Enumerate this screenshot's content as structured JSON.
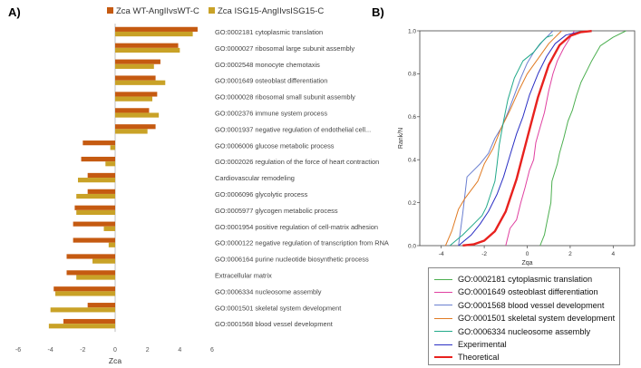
{
  "panel_a_label": "A)",
  "panel_b_label": "B)",
  "colors": {
    "series1": "#c55a11",
    "series2": "#c9a227",
    "zero_line": "#bfbfbf"
  },
  "chart_data": [
    {
      "type": "bar",
      "orientation": "horizontal",
      "xlabel": "Zca",
      "xlim": [
        -6,
        6
      ],
      "xticks": [
        -6,
        -4,
        -2,
        0,
        2,
        4,
        6
      ],
      "legend_position": "top",
      "categories": [
        "GO:0002181 cytoplasmic translation",
        "GO:0000027 ribosomal large subunit assembly",
        "GO:0002548 monocyte chemotaxis",
        "GO:0001649 osteoblast differentiation",
        "GO:0000028 ribosomal small subunit assembly",
        "GO:0002376 immune system process",
        "GO:0001937 negative regulation of endothelial cell...",
        "GO:0006006 glucose metabolic process",
        "GO:0002026 regulation of the force of heart contraction",
        "Cardiovascular remodeling",
        "GO:0006096 glycolytic process",
        "GO:0005977 glycogen metabolic process",
        "GO:0001954 positive regulation of cell-matrix adhesion",
        "GO:0000122 negative regulation of transcription from RNA",
        "GO:0006164 purine nucleotide biosynthetic process",
        "Extracellular matrix",
        "GO:0006334 nucleosome assembly",
        "GO:0001501 skeletal system development",
        "GO:0001568 blood vessel development"
      ],
      "series": [
        {
          "name": "Zca WT-AngIIvsWT-C",
          "color": "#c55a11",
          "values": [
            5.1,
            3.9,
            2.8,
            2.5,
            2.6,
            2.1,
            2.5,
            -2.0,
            -2.1,
            -1.7,
            -1.7,
            -2.5,
            -2.6,
            -2.6,
            -3.0,
            -3.0,
            -3.8,
            -1.7,
            -3.2
          ]
        },
        {
          "name": "Zca ISG15-AngIIvsISG15-C",
          "color": "#c9a227",
          "values": [
            4.8,
            4.0,
            2.4,
            3.1,
            2.3,
            2.7,
            2.0,
            -0.3,
            -0.6,
            -2.3,
            -2.4,
            -2.4,
            -0.7,
            -0.4,
            -1.4,
            -2.4,
            -3.7,
            -4.0,
            -4.1
          ]
        }
      ]
    },
    {
      "type": "line",
      "xlabel": "Zqa",
      "ylabel": "Rank/N",
      "xlim": [
        -5,
        5
      ],
      "ylim": [
        0,
        1
      ],
      "xticks": [
        -4,
        -2,
        0,
        2,
        4
      ],
      "yticks": [
        0.0,
        0.2,
        0.4,
        0.6,
        0.8,
        1.0
      ],
      "legend_position": "bottom",
      "series": [
        {
          "name": "GO:0002181 cytoplasmic translation",
          "color": "#4caf50",
          "x": [
            0.6,
            0.8,
            0.9,
            1.0,
            1.1,
            1.15,
            1.4,
            1.5,
            1.7,
            1.9,
            2.1,
            2.3,
            2.5,
            2.8,
            3.0,
            3.4,
            4.0,
            4.6
          ],
          "y": [
            0.0,
            0.05,
            0.1,
            0.15,
            0.2,
            0.3,
            0.38,
            0.43,
            0.5,
            0.58,
            0.63,
            0.7,
            0.76,
            0.82,
            0.86,
            0.93,
            0.97,
            1.0
          ]
        },
        {
          "name": "GO:0001649 osteoblast differentiation",
          "color": "#e040a0",
          "x": [
            -1.0,
            -0.8,
            -0.5,
            -0.3,
            -0.1,
            0.1,
            0.3,
            0.4,
            0.6,
            0.8,
            1.0,
            1.2,
            1.4,
            1.7,
            2.2
          ],
          "y": [
            0.0,
            0.08,
            0.12,
            0.2,
            0.27,
            0.35,
            0.4,
            0.48,
            0.55,
            0.62,
            0.72,
            0.8,
            0.86,
            0.92,
            1.0
          ]
        },
        {
          "name": "GO:0001568 blood vessel development",
          "color": "#6a7fd0",
          "x": [
            -3.2,
            -3.0,
            -2.8,
            -2.2,
            -1.8,
            -1.5,
            -1.2,
            -0.9,
            -0.6,
            -0.3,
            0.0,
            0.3,
            0.7,
            1.2
          ],
          "y": [
            0.0,
            0.15,
            0.32,
            0.38,
            0.43,
            0.5,
            0.55,
            0.62,
            0.7,
            0.78,
            0.85,
            0.9,
            0.95,
            1.0
          ]
        },
        {
          "name": "GO:0001501 skeletal system development",
          "color": "#e07b24",
          "x": [
            -3.8,
            -3.5,
            -3.2,
            -2.9,
            -2.6,
            -2.3,
            -2.0,
            -1.6,
            -1.2,
            -0.8,
            -0.4,
            0.0,
            0.5,
            1.0,
            1.6
          ],
          "y": [
            0.0,
            0.07,
            0.17,
            0.22,
            0.26,
            0.3,
            0.38,
            0.45,
            0.55,
            0.63,
            0.72,
            0.8,
            0.87,
            0.94,
            1.0
          ]
        },
        {
          "name": "GO:0006334 nucleosome assembly",
          "color": "#22a98a",
          "x": [
            -3.6,
            -3.0,
            -2.5,
            -2.1,
            -1.9,
            -1.7,
            -1.5,
            -1.4,
            -1.3,
            -1.1,
            -0.9,
            -0.6,
            -0.2,
            0.3,
            0.6,
            0.9,
            1.2
          ],
          "y": [
            0.0,
            0.05,
            0.1,
            0.14,
            0.18,
            0.24,
            0.3,
            0.38,
            0.47,
            0.58,
            0.68,
            0.78,
            0.86,
            0.9,
            0.94,
            0.97,
            0.98
          ]
        },
        {
          "name": "Experimental",
          "color": "#2a2fc4",
          "x": [
            -3.2,
            -2.6,
            -2.2,
            -1.8,
            -1.4,
            -1.1,
            -0.8,
            -0.5,
            -0.2,
            0.1,
            0.5,
            0.9,
            1.3,
            1.8,
            2.4,
            3.0
          ],
          "y": [
            0.0,
            0.05,
            0.1,
            0.16,
            0.24,
            0.32,
            0.42,
            0.52,
            0.6,
            0.7,
            0.8,
            0.88,
            0.94,
            0.98,
            0.995,
            1.0
          ]
        },
        {
          "name": "Theoretical",
          "color": "#e8211e",
          "x": [
            -3.0,
            -2.5,
            -2.0,
            -1.5,
            -1.0,
            -0.5,
            0.0,
            0.5,
            1.0,
            1.5,
            2.0,
            2.5,
            3.0
          ],
          "y": [
            0.001,
            0.006,
            0.023,
            0.067,
            0.159,
            0.309,
            0.5,
            0.691,
            0.841,
            0.933,
            0.977,
            0.994,
            0.999
          ]
        }
      ]
    }
  ]
}
